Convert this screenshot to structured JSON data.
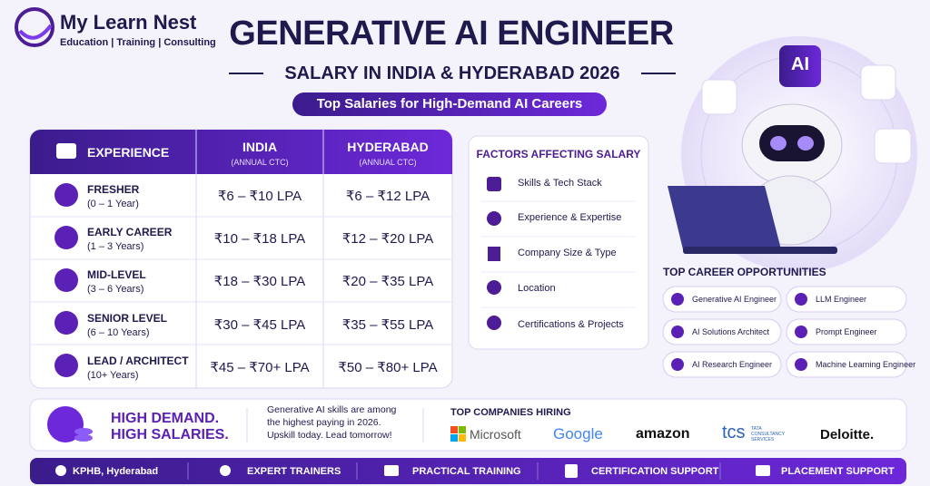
{
  "brand": {
    "name": "My Learn Nest",
    "tagline": "Education | Training | Consulting"
  },
  "header": {
    "title": "GENERATIVE AI ENGINEER",
    "subtitle": "SALARY IN INDIA & HYDERABAD 2026",
    "badge": "Top Salaries for High-Demand AI Careers"
  },
  "table": {
    "headers": [
      {
        "label": "EXPERIENCE"
      },
      {
        "label": "INDIA",
        "note": "(ANNUAL CTC)"
      },
      {
        "label": "HYDERABAD",
        "note": "(ANNUAL CTC)"
      }
    ],
    "rows": [
      {
        "level": "FRESHER",
        "years": "(0 – 1 Year)",
        "india": "₹6 – ₹10 LPA",
        "hyderabad": "₹6 – ₹12 LPA"
      },
      {
        "level": "EARLY CAREER",
        "years": "(1 – 3 Years)",
        "india": "₹10 – ₹18 LPA",
        "hyderabad": "₹12 – ₹20 LPA"
      },
      {
        "level": "MID-LEVEL",
        "years": "(3 – 6 Years)",
        "india": "₹18 – ₹30 LPA",
        "hyderabad": "₹20 – ₹35 LPA"
      },
      {
        "level": "SENIOR LEVEL",
        "years": "(6 – 10 Years)",
        "india": "₹30 – ₹45 LPA",
        "hyderabad": "₹35 – ₹55 LPA"
      },
      {
        "level": "LEAD / ARCHITECT",
        "years": "(10+ Years)",
        "india": "₹45 – ₹70+ LPA",
        "hyderabad": "₹50 – ₹80+ LPA"
      }
    ]
  },
  "factors": {
    "title": "FACTORS AFFECTING SALARY",
    "items": [
      "Skills & Tech Stack",
      "Experience & Expertise",
      "Company Size & Type",
      "Location",
      "Certifications & Projects"
    ]
  },
  "illustration": {
    "badge": "AI"
  },
  "careers": {
    "title": "TOP CAREER OPPORTUNITIES",
    "items": [
      "Generative AI Engineer",
      "LLM Engineer",
      "AI Solutions Architect",
      "Prompt Engineer",
      "AI Research Engineer",
      "Machine Learning Engineer"
    ]
  },
  "banner": {
    "headline": [
      "HIGH DEMAND.",
      "HIGH SALARIES."
    ],
    "text": [
      "Generative AI skills are among",
      "the highest paying in 2026.",
      "Upskill today. Lead tomorrow!"
    ],
    "companies_title": "TOP COMPANIES HIRING",
    "companies": [
      "Microsoft",
      "Google",
      "amazon",
      "tcs",
      "Deloitte."
    ],
    "tcs_note": "TATA CONSULTANCY SERVICES"
  },
  "footer": {
    "items": [
      "KPHB, Hyderabad",
      "EXPERT TRAINERS",
      "PRACTICAL TRAINING",
      "CERTIFICATION SUPPORT",
      "PLACEMENT SUPPORT"
    ]
  }
}
